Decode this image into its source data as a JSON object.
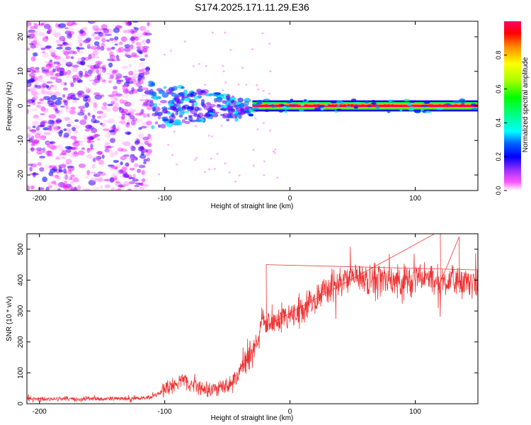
{
  "title": "S174.2025.171.11.29.E36",
  "chart_data": [
    {
      "type": "heatmap",
      "title": "S174.2025.171.11.29.E36",
      "xlabel": "Height of straight line (km)",
      "ylabel": "Frequency (Hz)",
      "xlim": [
        -210,
        150
      ],
      "ylim": [
        -24.5,
        24.5
      ],
      "x_ticks": [
        -200,
        -100,
        0,
        100
      ],
      "x_tick_labels": [
        "-200",
        "-100",
        "0",
        "100"
      ],
      "y_ticks": [
        -20,
        -10,
        0,
        10,
        20
      ],
      "y_tick_labels": [
        "-20",
        "-10",
        "0",
        "10",
        "20"
      ],
      "colorbar": {
        "label": "Normalized spectral amplitude",
        "range": [
          0,
          1
        ],
        "ticks": [
          0.0,
          0.2,
          0.4,
          0.6,
          0.8
        ],
        "tick_labels": [
          "0.0",
          "0.2",
          "0.4",
          "0.6",
          "0.8"
        ]
      },
      "regions": [
        {
          "x": [
            -210,
            -112
          ],
          "freq": [
            -24.5,
            24.5
          ],
          "amplitude": [
            0.02,
            0.25
          ],
          "description_value": "broadband"
        },
        {
          "x": [
            -112,
            -30
          ],
          "freq": [
            -8,
            7
          ],
          "amplitude": [
            0.15,
            0.45
          ]
        },
        {
          "x": [
            -30,
            150
          ],
          "freq": [
            -0.5,
            0.8
          ],
          "amplitude": [
            0.7,
            1.0
          ]
        }
      ]
    },
    {
      "type": "line",
      "xlabel": "Height of straight line (km)",
      "ylabel": "SNR (10 * v/v)",
      "xlim": [
        -210,
        150
      ],
      "ylim": [
        0,
        550
      ],
      "x_ticks": [
        -200,
        -100,
        0,
        100
      ],
      "x_tick_labels": [
        "-200",
        "-100",
        "0",
        "100"
      ],
      "y_ticks": [
        0,
        100,
        200,
        300,
        400,
        500
      ],
      "y_tick_labels": [
        "0",
        "100",
        "200",
        "300",
        "400",
        "500"
      ],
      "color": "#ee3333",
      "series": [
        {
          "x": [
            -210,
            -200,
            -190,
            -180,
            -170,
            -160,
            -150,
            -140,
            -130,
            -120,
            -110,
            -100,
            -95,
            -90,
            -85,
            -80,
            -75,
            -70,
            -65,
            -60,
            -55,
            -50,
            -45,
            -40,
            -35,
            -30,
            -25,
            -22,
            -20,
            -15,
            -10,
            -5,
            0,
            5,
            10,
            15,
            20,
            25,
            30,
            35,
            40,
            50,
            60,
            70,
            80,
            90,
            100,
            110,
            120,
            130,
            140,
            150
          ],
          "y": [
            18,
            16,
            15,
            17,
            14,
            16,
            15,
            17,
            16,
            18,
            22,
            45,
            60,
            68,
            72,
            65,
            58,
            50,
            47,
            48,
            52,
            60,
            72,
            105,
            140,
            170,
            200,
            300,
            250,
            260,
            270,
            280,
            285,
            290,
            300,
            320,
            345,
            360,
            375,
            385,
            395,
            405,
            400,
            410,
            395,
            400,
            400,
            405,
            395,
            400,
            385,
            395
          ]
        }
      ],
      "annotation_points": [
        {
          "x": -19,
          "y": 450
        },
        {
          "x": 120,
          "y": 560
        },
        {
          "x": 135,
          "y": 540
        }
      ]
    }
  ],
  "colormap": [
    "#ffffff",
    "#ff00ff",
    "#7f00ff",
    "#0000ff",
    "#0088ff",
    "#00ffff",
    "#00ff80",
    "#00ff00",
    "#a0ff00",
    "#ffff00",
    "#ff8000",
    "#ff0000",
    "#ff0060"
  ]
}
